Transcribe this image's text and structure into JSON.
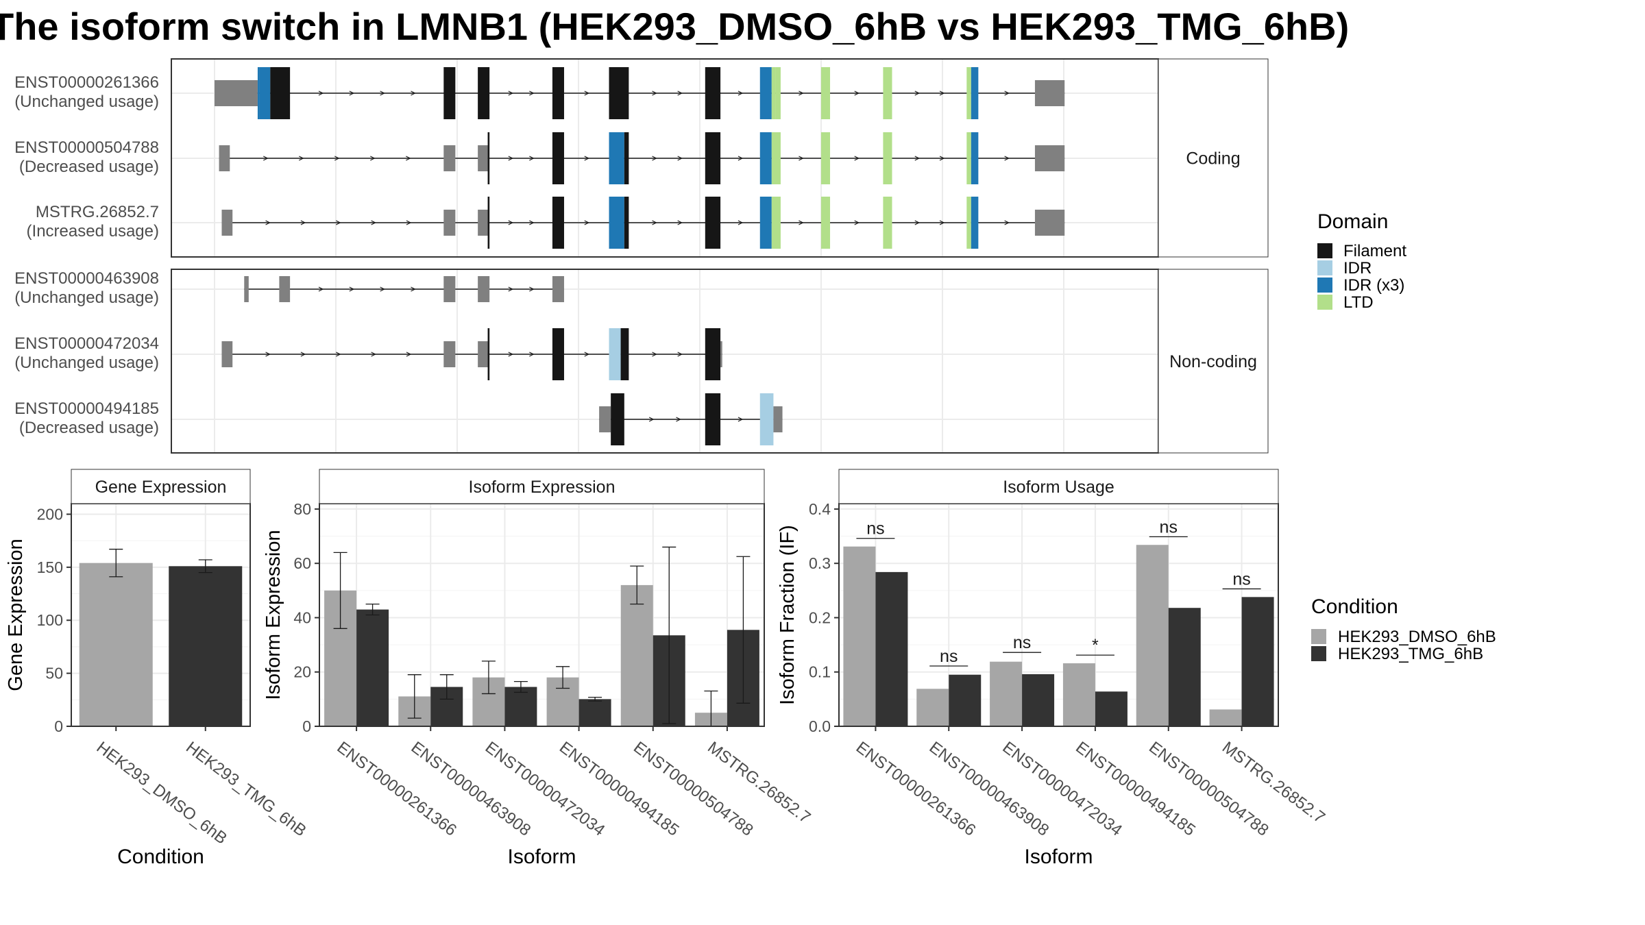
{
  "title": "The isoform switch in LMNB1 (HEK293_DMSO_6hB vs HEK293_TMG_6hB)",
  "colors": {
    "filament": "#161616",
    "idr": "#a6cee3",
    "idr_x3": "#1f78b4",
    "ltd": "#b2df8a",
    "utr": "#808080",
    "cond_dmso": "#a6a6a6",
    "cond_tmg": "#333333"
  },
  "structure": {
    "panels": [
      {
        "strip": "Coding",
        "transcripts": [
          {
            "id": "ENST00000261366",
            "status": "(Unchanged usage)",
            "segments": [
              [
                0,
                0.048,
                "utr"
              ],
              [
                0.048,
                0.05,
                "idr_x3"
              ],
              [
                0.05,
                0.062,
                "idr_x3"
              ],
              [
                0.062,
                0.084,
                "filament"
              ],
              [
                0.255,
                0.268,
                "filament"
              ],
              [
                0.293,
                0.306,
                "filament"
              ],
              [
                0.376,
                0.389,
                "filament"
              ],
              [
                0.439,
                0.461,
                "filament"
              ],
              [
                0.546,
                0.563,
                "filament"
              ],
              [
                0.607,
                0.62,
                "idr_x3"
              ],
              [
                0.62,
                0.624,
                "ltd"
              ],
              [
                0.624,
                0.63,
                "ltd"
              ],
              [
                0.675,
                0.685,
                "ltd"
              ],
              [
                0.744,
                0.754,
                "ltd"
              ],
              [
                0.837,
                0.842,
                "ltd"
              ],
              [
                0.842,
                0.85,
                "idr_x3"
              ],
              [
                0.913,
                0.918,
                "utr"
              ],
              [
                0.918,
                0.946,
                "utr"
              ]
            ]
          },
          {
            "id": "ENST00000504788",
            "status": "(Decreased usage)",
            "segments": [
              [
                0.005,
                0.017,
                "utr"
              ],
              [
                0.255,
                0.268,
                "utr"
              ],
              [
                0.293,
                0.304,
                "utr"
              ],
              [
                0.304,
                0.306,
                "filament"
              ],
              [
                0.376,
                0.389,
                "filament"
              ],
              [
                0.439,
                0.456,
                "idr_x3"
              ],
              [
                0.456,
                0.461,
                "filament"
              ],
              [
                0.546,
                0.563,
                "filament"
              ],
              [
                0.607,
                0.62,
                "idr_x3"
              ],
              [
                0.62,
                0.63,
                "ltd"
              ],
              [
                0.675,
                0.685,
                "ltd"
              ],
              [
                0.744,
                0.754,
                "ltd"
              ],
              [
                0.837,
                0.842,
                "ltd"
              ],
              [
                0.842,
                0.85,
                "idr_x3"
              ],
              [
                0.913,
                0.918,
                "utr"
              ],
              [
                0.918,
                0.946,
                "utr"
              ]
            ]
          },
          {
            "id": "MSTRG.26852.7",
            "status": "(Increased usage)",
            "segments": [
              [
                0.008,
                0.02,
                "utr"
              ],
              [
                0.255,
                0.268,
                "utr"
              ],
              [
                0.293,
                0.304,
                "utr"
              ],
              [
                0.304,
                0.306,
                "filament"
              ],
              [
                0.376,
                0.389,
                "filament"
              ],
              [
                0.439,
                0.456,
                "idr_x3"
              ],
              [
                0.456,
                0.461,
                "filament"
              ],
              [
                0.546,
                0.563,
                "filament"
              ],
              [
                0.607,
                0.62,
                "idr_x3"
              ],
              [
                0.62,
                0.63,
                "ltd"
              ],
              [
                0.675,
                0.685,
                "ltd"
              ],
              [
                0.744,
                0.754,
                "ltd"
              ],
              [
                0.837,
                0.842,
                "ltd"
              ],
              [
                0.842,
                0.85,
                "idr_x3"
              ],
              [
                0.913,
                0.918,
                "utr"
              ],
              [
                0.918,
                0.946,
                "utr"
              ]
            ]
          }
        ]
      },
      {
        "strip": "Non-coding",
        "transcripts": [
          {
            "id": "ENST00000463908",
            "status": "(Unchanged usage)",
            "segments": [
              [
                0.033,
                0.038,
                "utr"
              ],
              [
                0.072,
                0.084,
                "utr"
              ],
              [
                0.255,
                0.268,
                "utr"
              ],
              [
                0.293,
                0.306,
                "utr"
              ],
              [
                0.376,
                0.389,
                "utr"
              ]
            ]
          },
          {
            "id": "ENST00000472034",
            "status": "(Unchanged usage)",
            "segments": [
              [
                0.008,
                0.02,
                "utr"
              ],
              [
                0.255,
                0.268,
                "utr"
              ],
              [
                0.293,
                0.304,
                "utr"
              ],
              [
                0.304,
                0.306,
                "filament"
              ],
              [
                0.376,
                0.389,
                "filament"
              ],
              [
                0.439,
                0.452,
                "idr"
              ],
              [
                0.452,
                0.461,
                "filament"
              ],
              [
                0.546,
                0.563,
                "filament"
              ],
              [
                0.563,
                0.565,
                "utr"
              ]
            ]
          },
          {
            "id": "ENST00000494185",
            "status": "(Decreased usage)",
            "segments": [
              [
                0.428,
                0.441,
                "utr"
              ],
              [
                0.441,
                0.456,
                "filament"
              ],
              [
                0.546,
                0.563,
                "filament"
              ],
              [
                0.607,
                0.622,
                "idr"
              ],
              [
                0.622,
                0.632,
                "utr"
              ]
            ]
          }
        ]
      }
    ]
  },
  "legend_domain": {
    "title": "Domain",
    "items": [
      {
        "label": "Filament",
        "color": "#161616"
      },
      {
        "label": "IDR",
        "color": "#a6cee3"
      },
      {
        "label": "IDR (x3)",
        "color": "#1f78b4"
      },
      {
        "label": "LTD",
        "color": "#b2df8a"
      }
    ]
  },
  "legend_condition": {
    "title": "Condition",
    "items": [
      {
        "label": "HEK293_DMSO_6hB",
        "color": "#a6a6a6"
      },
      {
        "label": "HEK293_TMG_6hB",
        "color": "#333333"
      }
    ]
  },
  "chart_data": [
    {
      "type": "bar",
      "title": "Gene Expression",
      "xlabel": "Condition",
      "ylabel": "Gene Expression",
      "ylim": [
        0,
        210
      ],
      "yticks": [
        0,
        50,
        100,
        150,
        200
      ],
      "categories": [
        "HEK293_DMSO_6hB",
        "HEK293_TMG_6hB"
      ],
      "series": [
        {
          "values": [
            154,
            151
          ],
          "errors": [
            13,
            6
          ]
        }
      ],
      "grid": true
    },
    {
      "type": "bar",
      "title": "Isoform Expression",
      "xlabel": "Isoform",
      "ylabel": "Isoform Expression",
      "ylim": [
        0,
        82
      ],
      "yticks": [
        0,
        20,
        40,
        60,
        80
      ],
      "categories": [
        "ENST00000261366",
        "ENST00000463908",
        "ENST00000472034",
        "ENST00000494185",
        "ENST00000504788",
        "MSTRG.26852.7"
      ],
      "series": [
        {
          "name": "HEK293_DMSO_6hB",
          "values": [
            50,
            11,
            18,
            18,
            52,
            5
          ],
          "errors": [
            14,
            8,
            6,
            4,
            7,
            8
          ]
        },
        {
          "name": "HEK293_TMG_6hB",
          "values": [
            43,
            14.5,
            14.5,
            10,
            33.5,
            35.5
          ],
          "errors": [
            2,
            4.5,
            2,
            0.7,
            32.5,
            27
          ]
        }
      ],
      "grid": true
    },
    {
      "type": "bar",
      "title": "Isoform Usage",
      "xlabel": "Isoform",
      "ylabel": "Isoform Fraction (IF)",
      "ylim": [
        0,
        0.41
      ],
      "yticks": [
        "0.0",
        "0.1",
        "0.2",
        "0.3",
        "0.4"
      ],
      "categories": [
        "ENST00000261366",
        "ENST00000463908",
        "ENST00000472034",
        "ENST00000494185",
        "ENST00000504788",
        "MSTRG.26852.7"
      ],
      "series": [
        {
          "name": "HEK293_DMSO_6hB",
          "values": [
            0.331,
            0.069,
            0.119,
            0.116,
            0.334,
            0.031
          ]
        },
        {
          "name": "HEK293_TMG_6hB",
          "values": [
            0.284,
            0.095,
            0.096,
            0.064,
            0.218,
            0.238
          ]
        }
      ],
      "significance": [
        "ns",
        "ns",
        "ns",
        "*",
        "ns",
        "ns"
      ],
      "significance_y": [
        0.346,
        0.111,
        0.136,
        0.131,
        0.349,
        0.253
      ],
      "grid": true
    }
  ]
}
